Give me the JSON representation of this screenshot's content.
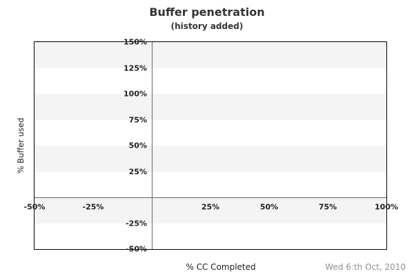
{
  "chart_data": {
    "type": "scatter",
    "title": "Buffer penetration",
    "subtitle": "(history added)",
    "xlabel": "% CC Completed",
    "ylabel": "% Buffer used",
    "xlim": [
      -50,
      100
    ],
    "ylim": [
      -50,
      150
    ],
    "x_ticks": [
      {
        "value": -50,
        "label": "-50%"
      },
      {
        "value": -25,
        "label": "-25%"
      },
      {
        "value": 25,
        "label": "25%"
      },
      {
        "value": 50,
        "label": "50%"
      },
      {
        "value": 75,
        "label": "75%"
      },
      {
        "value": 100,
        "label": "100%"
      }
    ],
    "y_ticks": [
      {
        "value": 150,
        "label": "150%"
      },
      {
        "value": 125,
        "label": "125%"
      },
      {
        "value": 100,
        "label": "100%"
      },
      {
        "value": 75,
        "label": "75%"
      },
      {
        "value": 50,
        "label": "50%"
      },
      {
        "value": 25,
        "label": "25%"
      },
      {
        "value": -25,
        "label": "-25%"
      },
      {
        "value": -50,
        "label": "-50%"
      }
    ],
    "shaded_bands": [
      {
        "from": 125,
        "to": 150
      },
      {
        "from": 75,
        "to": 100
      },
      {
        "from": 25,
        "to": 50
      },
      {
        "from": -25,
        "to": 0
      }
    ],
    "zero_lines": {
      "x": 0,
      "y": 0
    },
    "series": [],
    "footer_date": "Wed 6:th Oct, 2010",
    "grid": "horizontal-bands",
    "legend": "none",
    "colors": {
      "band": "#f4f4f4",
      "zero_line": "#666666",
      "plot_border": "#000000",
      "tick_text": "#222222",
      "title_text": "#333333",
      "date_text": "#909090"
    }
  }
}
